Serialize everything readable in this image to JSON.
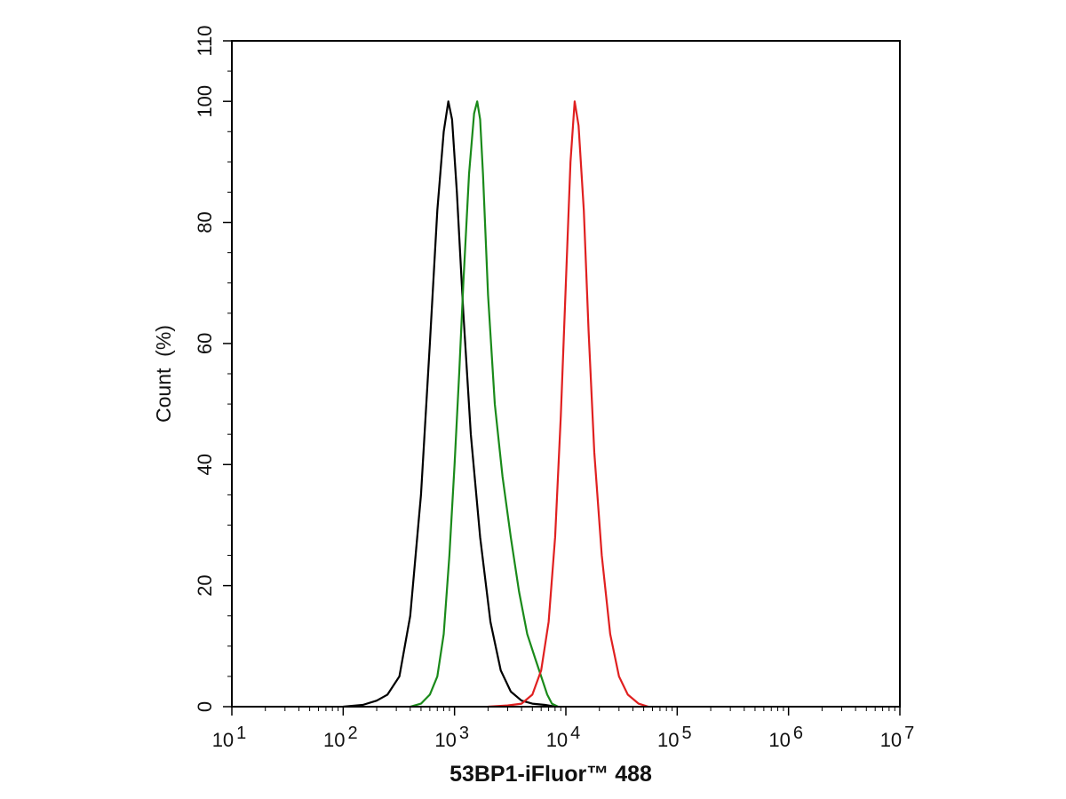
{
  "chart_data": {
    "type": "line",
    "xlabel": "53BP1-iFluor™ 488",
    "ylabel": "Count  (%)",
    "xscale": "log",
    "xlim": [
      10,
      10000000
    ],
    "ylim": [
      0,
      110
    ],
    "grid": false,
    "legend": "none",
    "x_ticks": [
      {
        "base": "10",
        "exp": "1",
        "value": 10
      },
      {
        "base": "10",
        "exp": "2",
        "value": 100
      },
      {
        "base": "10",
        "exp": "3",
        "value": 1000
      },
      {
        "base": "10",
        "exp": "4",
        "value": 10000
      },
      {
        "base": "10",
        "exp": "5",
        "value": 100000
      },
      {
        "base": "10",
        "exp": "6",
        "value": 1000000
      },
      {
        "base": "10",
        "exp": "7",
        "value": 10000000
      }
    ],
    "y_ticks": [
      {
        "label": "0",
        "value": 0
      },
      {
        "label": "20",
        "value": 20
      },
      {
        "label": "40",
        "value": 40
      },
      {
        "label": "60",
        "value": 60
      },
      {
        "label": "80",
        "value": 80
      },
      {
        "label": "100",
        "value": 100
      },
      {
        "label": "110",
        "value": 110
      }
    ],
    "series": [
      {
        "color": "#000000",
        "x": [
          100,
          150,
          200,
          250,
          320,
          400,
          500,
          600,
          700,
          800,
          880,
          950,
          1050,
          1200,
          1400,
          1700,
          2100,
          2600,
          3200,
          4000,
          5000,
          6500,
          8000
        ],
        "y": [
          0,
          0.3,
          1,
          2,
          5,
          15,
          35,
          60,
          82,
          95,
          100,
          97,
          85,
          65,
          45,
          28,
          14,
          6,
          2.5,
          1,
          0.5,
          0.3,
          0
        ]
      },
      {
        "color": "#1a8a1a",
        "x": [
          400,
          500,
          600,
          700,
          800,
          900,
          1000,
          1100,
          1200,
          1350,
          1500,
          1600,
          1700,
          1800,
          2000,
          2300,
          2700,
          3200,
          3800,
          4500,
          5300,
          6000,
          6800,
          7500,
          8500
        ],
        "y": [
          0,
          0.5,
          2,
          5,
          12,
          25,
          40,
          55,
          70,
          88,
          98,
          100,
          97,
          88,
          68,
          50,
          38,
          28,
          19,
          12,
          8,
          5,
          2,
          0.5,
          0
        ]
      },
      {
        "color": "#e02020",
        "x": [
          2000,
          3000,
          4000,
          5000,
          6000,
          7000,
          8000,
          9000,
          10000,
          11000,
          12000,
          13000,
          14500,
          16000,
          18000,
          21000,
          25000,
          30000,
          36000,
          45000,
          55000
        ],
        "y": [
          0,
          0.2,
          0.5,
          2,
          6,
          14,
          28,
          48,
          70,
          90,
          100,
          96,
          82,
          62,
          42,
          25,
          12,
          5,
          2,
          0.5,
          0
        ]
      }
    ]
  }
}
